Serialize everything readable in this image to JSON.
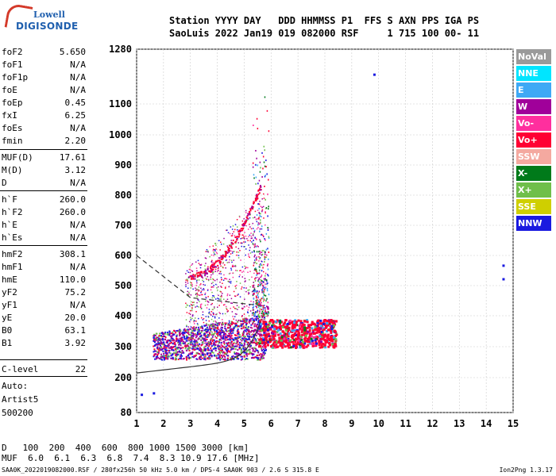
{
  "logo": {
    "line1": "Lowell",
    "line2": "DIGISONDE"
  },
  "header": {
    "line1": "Station YYYY DAY   DDD HHMMSS P1  FFS S AXN PPS IGA PS",
    "line2": "SaoLuis 2022 Jan19 019 082000 RSF     1 715 100 00- 11"
  },
  "params": [
    {
      "k": "foF2",
      "v": "5.650"
    },
    {
      "k": "foF1",
      "v": "N/A"
    },
    {
      "k": "foF1p",
      "v": "N/A"
    },
    {
      "k": "foE",
      "v": "N/A"
    },
    {
      "k": "foEp",
      "v": "0.45"
    },
    {
      "k": "fxI",
      "v": "6.25"
    },
    {
      "k": "foEs",
      "v": "N/A"
    },
    {
      "k": "fmin",
      "v": "2.20"
    },
    {
      "k": "MUF(D)",
      "v": "17.61"
    },
    {
      "k": "M(D)",
      "v": "3.12"
    },
    {
      "k": "D",
      "v": "N/A"
    },
    {
      "k": "h`F",
      "v": "260.0"
    },
    {
      "k": "h`F2",
      "v": "260.0"
    },
    {
      "k": "h`E",
      "v": "N/A"
    },
    {
      "k": "h`Es",
      "v": "N/A"
    },
    {
      "k": "hmF2",
      "v": "308.1"
    },
    {
      "k": "hmF1",
      "v": "N/A"
    },
    {
      "k": "hmE",
      "v": "110.0"
    },
    {
      "k": "yF2",
      "v": "75.2"
    },
    {
      "k": "yF1",
      "v": "N/A"
    },
    {
      "k": "yE",
      "v": "20.0"
    },
    {
      "k": "B0",
      "v": "63.1"
    },
    {
      "k": "B1",
      "v": "3.92"
    },
    {
      "k": "C-level",
      "v": "22"
    }
  ],
  "auto": {
    "l1": "Auto:",
    "l2": "Artist5",
    "l3": "500200"
  },
  "legend": [
    {
      "label": "NoVal",
      "color": "#9a9a9a"
    },
    {
      "label": "NNE",
      "color": "#00e5ff"
    },
    {
      "label": "E",
      "color": "#3fa9f5"
    },
    {
      "label": "W",
      "color": "#a0009a"
    },
    {
      "label": "Vo-",
      "color": "#ff2f9e"
    },
    {
      "label": "Vo+",
      "color": "#ff0033"
    },
    {
      "label": "SSW",
      "color": "#f4a9a0"
    },
    {
      "label": "X-",
      "color": "#007a1a"
    },
    {
      "label": "X+",
      "color": "#6fbf4a"
    },
    {
      "label": "SSE",
      "color": "#cfcf00"
    },
    {
      "label": "NNW",
      "color": "#1a1ae0"
    }
  ],
  "muf_table": {
    "d_label": "D",
    "d_values": "100  200  400  600  800 1000 1500 3000 [km]",
    "m_label": "MUF",
    "m_values": "6.0  6.1  6.3  6.8  7.4  8.3 10.9 17.6 [MHz]"
  },
  "footer": "SAA0K_2022019082000.RSF / 280fx256h 50 kHz 5.0 km / DPS-4 SAA0K 903 / 2.6 S 315.8 E",
  "version": "Ion2Png 1.3.17",
  "chart_data": {
    "type": "scatter",
    "x_range": [
      1,
      15
    ],
    "y_range": [
      80,
      1280
    ],
    "x_ticks": [
      "1",
      "2",
      "3",
      "4",
      "5",
      "6",
      "7",
      "8",
      "9",
      "10",
      "11",
      "12",
      "13",
      "14",
      "15"
    ],
    "y_ticks": [
      "80",
      "200",
      "300",
      "400",
      "500",
      "600",
      "700",
      "800",
      "900",
      "1000",
      "1100",
      "1280"
    ],
    "grid": true
  }
}
